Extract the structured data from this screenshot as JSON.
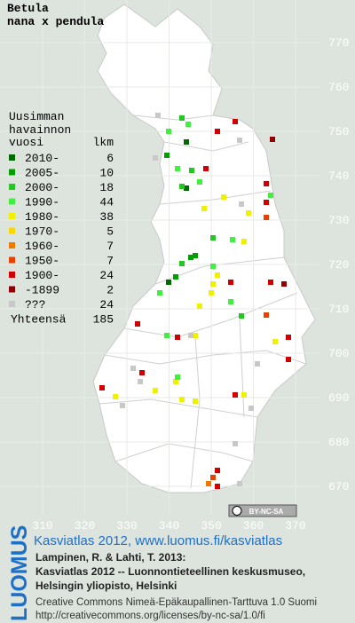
{
  "title": [
    "Betula",
    "nana x pendula"
  ],
  "legend": {
    "heading": [
      "Uusimman",
      "havainnon"
    ],
    "col_period": "vuosi",
    "col_count": "lkm",
    "rows": [
      {
        "label": "2010-",
        "count": 6,
        "color": "#006a00"
      },
      {
        "label": "2005-",
        "count": 10,
        "color": "#00a000"
      },
      {
        "label": "2000-",
        "count": 18,
        "color": "#20c820"
      },
      {
        "label": "1990-",
        "count": 44,
        "color": "#40f040"
      },
      {
        "label": "1980-",
        "count": 38,
        "color": "#f0f000"
      },
      {
        "label": "1970-",
        "count": 5,
        "color": "#f8d800"
      },
      {
        "label": "1960-",
        "count": 7,
        "color": "#f07800"
      },
      {
        "label": "1950-",
        "count": 7,
        "color": "#e84000"
      },
      {
        "label": "1900-",
        "count": 24,
        "color": "#d00000"
      },
      {
        "label": "-1899",
        "count": 2,
        "color": "#900000"
      },
      {
        "label": "???",
        "count": 24,
        "color": "#c8c8c8"
      }
    ],
    "total_label": "Yhteensä",
    "total": 185
  },
  "grid": {
    "x_ticks": [
      310,
      320,
      330,
      340,
      350,
      360,
      370
    ],
    "y_ticks": [
      670,
      680,
      690,
      700,
      710,
      720,
      730,
      740,
      750,
      760,
      770
    ]
  },
  "badge": "BY-NC-SA",
  "logo": "LUOMUS",
  "credits": {
    "link": "Kasviatlas 2012, www.luomus.fi/kasviatlas",
    "lines": [
      "Lampinen, R. & Lahti, T. 2013:",
      "Kasviatlas 2012 -- Luonnontieteellinen keskusmuseo,",
      "Helsingin yliopisto, Helsinki"
    ],
    "license": [
      "Creative Commons Nimeä-Epäkaupallinen-Tarttuva 1.0 Suomi",
      "http://creativecommons.org/licenses/by-nc-sa/1.0/fi"
    ]
  }
}
